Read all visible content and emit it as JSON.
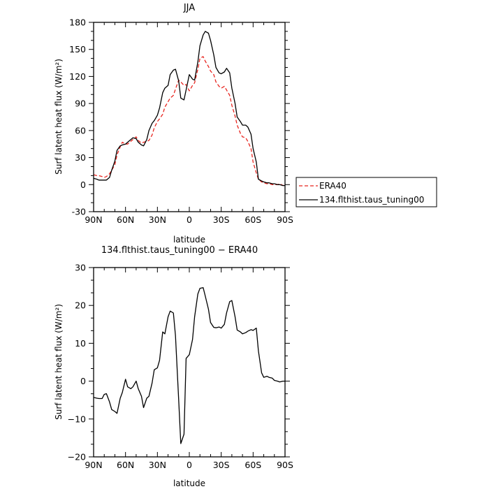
{
  "chart_data": [
    {
      "type": "line",
      "title": "JJA",
      "xlabel": "latitude",
      "ylabel": "Surf latent heat flux (W/m²)",
      "xlim": [
        90,
        -90
      ],
      "ylim": [
        -30,
        180
      ],
      "x_ticks": [
        90,
        60,
        30,
        0,
        -30,
        -60,
        -90
      ],
      "x_tick_labels": [
        "90N",
        "60N",
        "30N",
        "0",
        "30S",
        "60S",
        "90S"
      ],
      "y_ticks": [
        -30,
        0,
        30,
        60,
        90,
        120,
        150,
        180
      ],
      "y_tick_labels": [
        "-30",
        "0",
        "30",
        "60",
        "90",
        "120",
        "150",
        "180"
      ],
      "legend_position": "outside-right",
      "series": [
        {
          "name": "ERA40",
          "color": "#e8251f",
          "dash": "dashed",
          "x": [
            90,
            87,
            85,
            82,
            80,
            78,
            75,
            73,
            70,
            68,
            65,
            63,
            60,
            58,
            55,
            53,
            50,
            48,
            45,
            43,
            40,
            38,
            35,
            33,
            30,
            28,
            25,
            23,
            20,
            18,
            15,
            13,
            10,
            8,
            5,
            3,
            0,
            -3,
            -5,
            -8,
            -10,
            -13,
            -15,
            -18,
            -20,
            -23,
            -25,
            -28,
            -30,
            -33,
            -35,
            -38,
            -40,
            -43,
            -45,
            -48,
            -50,
            -53,
            -55,
            -58,
            -60,
            -63,
            -65,
            -68,
            -70,
            -73,
            -75,
            -78,
            -80,
            -83,
            -85,
            -88,
            -90
          ],
          "y": [
            11,
            10,
            10,
            9,
            8,
            9,
            12,
            16,
            22,
            33,
            42,
            47,
            45,
            45,
            48,
            50,
            53,
            49,
            46,
            47,
            48,
            49,
            55,
            63,
            70,
            73,
            78,
            86,
            92,
            96,
            99,
            106,
            116,
            114,
            110,
            111,
            104,
            110,
            113,
            128,
            140,
            142,
            137,
            131,
            126,
            122,
            114,
            109,
            107,
            109,
            105,
            99,
            88,
            76,
            66,
            57,
            53,
            52,
            48,
            40,
            25,
            13,
            6,
            3,
            2,
            1,
            1,
            0,
            0,
            0,
            1,
            -1,
            0
          ]
        },
        {
          "name": "134.flthist.taus_tuning00",
          "color": "#000000",
          "dash": "solid",
          "x": [
            90,
            87,
            85,
            82,
            80,
            78,
            75,
            73,
            70,
            68,
            65,
            63,
            60,
            58,
            55,
            53,
            50,
            48,
            45,
            43,
            40,
            38,
            35,
            33,
            30,
            28,
            25,
            23,
            20,
            18,
            15,
            13,
            10,
            8,
            5,
            3,
            0,
            -3,
            -5,
            -8,
            -10,
            -13,
            -15,
            -18,
            -20,
            -23,
            -25,
            -28,
            -30,
            -33,
            -35,
            -38,
            -40,
            -43,
            -45,
            -48,
            -50,
            -53,
            -55,
            -58,
            -60,
            -63,
            -65,
            -68,
            -70,
            -73,
            -75,
            -78,
            -80,
            -83,
            -85,
            -88,
            -90
          ],
          "y": [
            7,
            6,
            5,
            5,
            5,
            5,
            8,
            16,
            26,
            38,
            43,
            44,
            45,
            47,
            50,
            52,
            51,
            47,
            44,
            43,
            50,
            60,
            68,
            71,
            77,
            85,
            102,
            107,
            110,
            122,
            127,
            128,
            115,
            96,
            94,
            105,
            122,
            117,
            116,
            136,
            154,
            166,
            170,
            168,
            160,
            144,
            130,
            124,
            123,
            125,
            129,
            124,
            107,
            90,
            75,
            70,
            66,
            66,
            64,
            56,
            40,
            25,
            6,
            4,
            3,
            2,
            2,
            1,
            1,
            0,
            0,
            -1,
            -1
          ]
        }
      ]
    },
    {
      "type": "line",
      "title": "134.flthist.taus_tuning00 − ERA40",
      "xlabel": "latitude",
      "ylabel": "Surf latent heat flux (W/m²)",
      "xlim": [
        90,
        -90
      ],
      "ylim": [
        -20,
        30
      ],
      "x_ticks": [
        90,
        60,
        30,
        0,
        -30,
        -60,
        -90
      ],
      "x_tick_labels": [
        "90N",
        "60N",
        "30N",
        "0",
        "30S",
        "60S",
        "90S"
      ],
      "y_ticks": [
        -20,
        -10,
        0,
        10,
        20,
        30
      ],
      "y_tick_labels": [
        "−20",
        "−10",
        "0",
        "10",
        "20",
        "30"
      ],
      "series": [
        {
          "color": "#000000",
          "dash": "solid",
          "x": [
            90,
            87,
            85,
            82,
            80,
            78,
            75,
            73,
            70,
            68,
            65,
            63,
            60,
            58,
            55,
            53,
            50,
            48,
            45,
            43,
            40,
            38,
            35,
            33,
            30,
            28,
            25,
            23,
            20,
            18,
            15,
            13,
            10,
            8,
            5,
            3,
            0,
            -3,
            -5,
            -8,
            -10,
            -13,
            -15,
            -18,
            -20,
            -23,
            -25,
            -28,
            -30,
            -33,
            -35,
            -38,
            -40,
            -43,
            -45,
            -48,
            -50,
            -53,
            -55,
            -58,
            -60,
            -63,
            -65,
            -68,
            -70,
            -73,
            -75,
            -78,
            -80,
            -83,
            -85,
            -88,
            -90
          ],
          "y": [
            -4.3,
            -4.5,
            -4.6,
            -4.6,
            -3.5,
            -3.3,
            -5.5,
            -7.5,
            -8,
            -8.5,
            -4.5,
            -3,
            0.5,
            -1.5,
            -2,
            -1.5,
            0,
            -2,
            -4,
            -7,
            -4.5,
            -4,
            -0.5,
            3,
            3.5,
            5.5,
            13,
            12.5,
            17,
            18.5,
            18,
            12,
            -5,
            -16.5,
            -14,
            6,
            7,
            11,
            17,
            23,
            24.5,
            24.7,
            22.5,
            19,
            15.5,
            14.2,
            14.1,
            14.3,
            14,
            15,
            18,
            21,
            21.3,
            17,
            13.5,
            13,
            12.5,
            12.8,
            13.2,
            13.6,
            13.4,
            14,
            8,
            2.2,
            1,
            1.3,
            1,
            0.8,
            0.2,
            0,
            -0.2,
            0,
            0
          ]
        }
      ]
    }
  ]
}
